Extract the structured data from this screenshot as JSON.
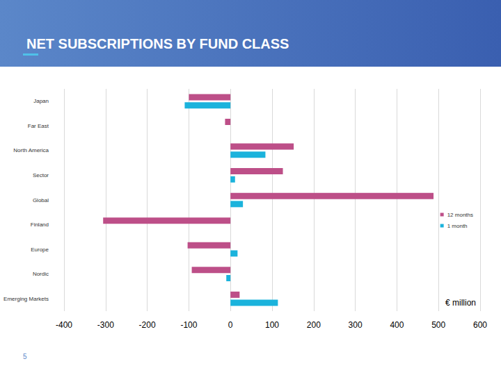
{
  "chart_data": {
    "type": "bar",
    "title": "NET SUBSCRIPTIONS BY FUND CLASS",
    "orientation": "horizontal",
    "categories": [
      "Japan",
      "Far East",
      "North America",
      "Sector",
      "Global",
      "Finland",
      "Europe",
      "Nordic",
      "Emerging Markets"
    ],
    "series": [
      {
        "name": "12 months",
        "color": "#bd4f88",
        "values": [
          -100,
          -13,
          152,
          126,
          488,
          -306,
          -103,
          -93,
          22
        ]
      },
      {
        "name": "1 month",
        "color": "#1bb3dc",
        "values": [
          -110,
          0,
          84,
          11,
          30,
          0,
          17,
          -10,
          114
        ]
      }
    ],
    "xlim": [
      -400,
      600
    ],
    "xticks": [
      -400,
      -300,
      -200,
      -100,
      0,
      100,
      200,
      300,
      400,
      500,
      600
    ],
    "annotations": [
      "€ million"
    ],
    "footer": "5",
    "grid": true,
    "legend": "right"
  }
}
